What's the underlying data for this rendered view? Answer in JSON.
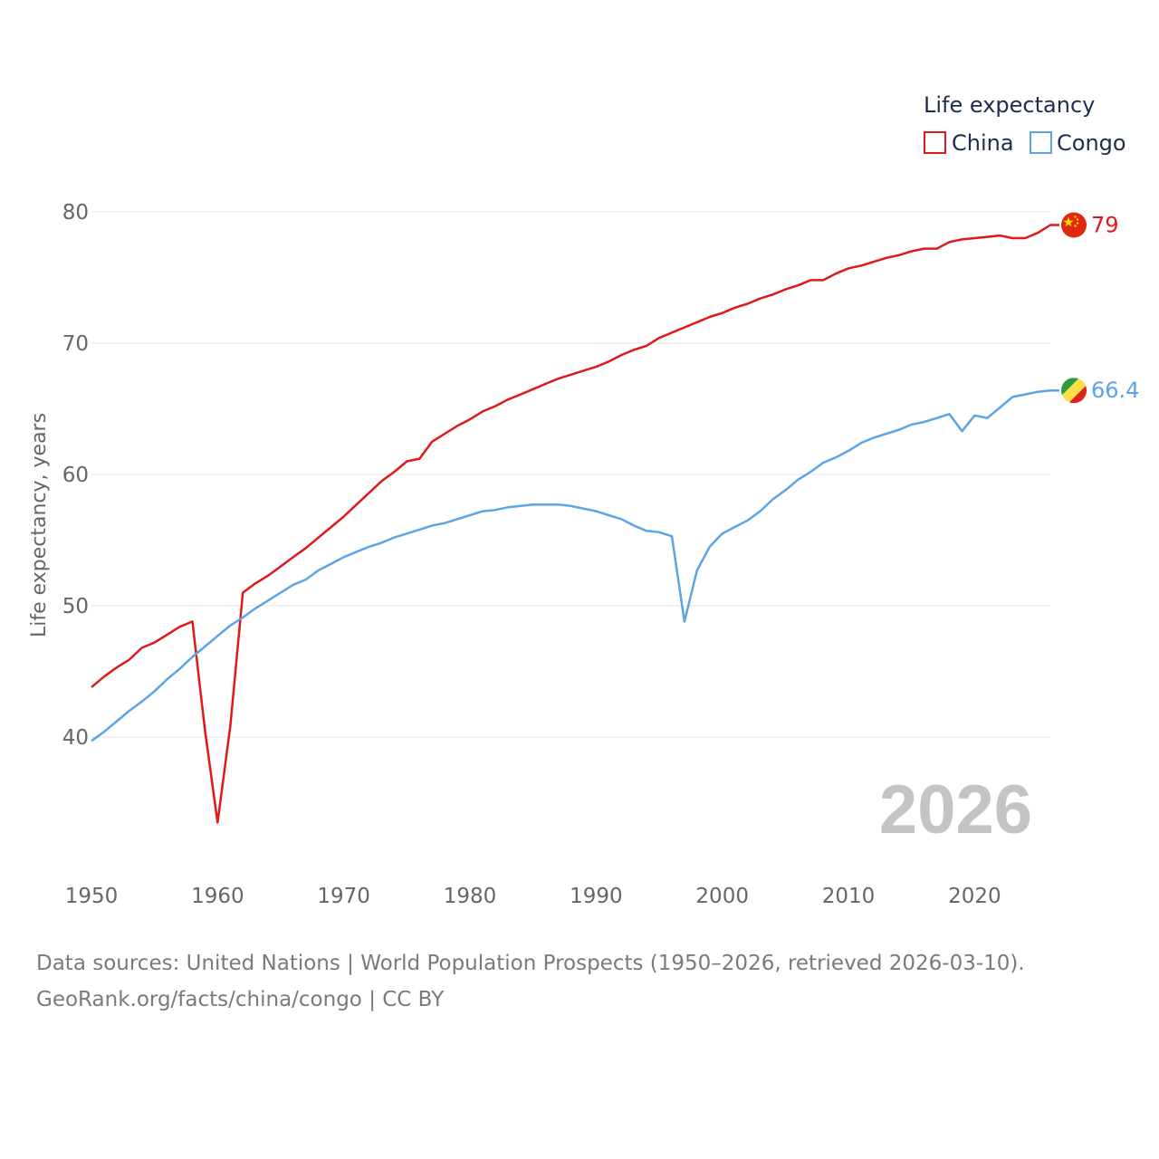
{
  "chart_data": {
    "type": "line",
    "title": "",
    "ylabel": "Life expectancy, years",
    "xlabel": "",
    "xlim": [
      1950,
      2026
    ],
    "ylim": [
      30,
      82
    ],
    "x_ticks": [
      "1950",
      "1960",
      "1970",
      "1980",
      "1990",
      "2000",
      "2010",
      "2020"
    ],
    "y_ticks": [
      "40",
      "50",
      "60",
      "70",
      "80"
    ],
    "legend": {
      "title": "Life expectancy",
      "placement": "top-right",
      "entries": [
        {
          "name": "China",
          "color": "#e01818"
        },
        {
          "name": "Congo",
          "color": "#5ba4e6"
        }
      ]
    },
    "current_year": "2026",
    "x": [
      1950,
      1951,
      1952,
      1953,
      1954,
      1955,
      1956,
      1957,
      1958,
      1959,
      1960,
      1961,
      1962,
      1963,
      1964,
      1965,
      1966,
      1967,
      1968,
      1969,
      1970,
      1971,
      1972,
      1973,
      1974,
      1975,
      1976,
      1977,
      1978,
      1979,
      1980,
      1981,
      1982,
      1983,
      1984,
      1985,
      1986,
      1987,
      1988,
      1989,
      1990,
      1991,
      1992,
      1993,
      1994,
      1995,
      1996,
      1997,
      1998,
      1999,
      2000,
      2001,
      2002,
      2003,
      2004,
      2005,
      2006,
      2007,
      2008,
      2009,
      2010,
      2011,
      2012,
      2013,
      2014,
      2015,
      2016,
      2017,
      2018,
      2019,
      2020,
      2021,
      2022,
      2023,
      2024,
      2025,
      2026
    ],
    "series": [
      {
        "name": "China",
        "color": "#e01818",
        "end_label": "79",
        "icon": "china-flag-icon",
        "values": [
          43.8,
          44.6,
          45.3,
          45.9,
          46.8,
          47.2,
          47.8,
          48.4,
          48.8,
          40.5,
          33.5,
          40.8,
          51.0,
          51.7,
          52.3,
          53.0,
          53.7,
          54.4,
          55.2,
          56.0,
          56.8,
          57.7,
          58.6,
          59.5,
          60.2,
          61.0,
          61.2,
          62.5,
          63.1,
          63.7,
          64.2,
          64.8,
          65.2,
          65.7,
          66.1,
          66.5,
          66.9,
          67.3,
          67.6,
          67.9,
          68.2,
          68.6,
          69.1,
          69.5,
          69.8,
          70.4,
          70.8,
          71.2,
          71.6,
          72.0,
          72.3,
          72.7,
          73.0,
          73.4,
          73.7,
          74.1,
          74.4,
          74.8,
          74.8,
          75.3,
          75.7,
          75.9,
          76.2,
          76.5,
          76.7,
          77.0,
          77.2,
          77.2,
          77.7,
          77.9,
          78.0,
          78.1,
          78.2,
          78.0,
          78.0,
          78.4,
          79.0
        ]
      },
      {
        "name": "Congo",
        "color": "#5ba4e6",
        "end_label": "66.4",
        "icon": "congo-flag-icon",
        "values": [
          39.7,
          40.4,
          41.2,
          42.0,
          42.7,
          43.5,
          44.4,
          45.2,
          46.1,
          46.9,
          47.7,
          48.5,
          49.1,
          49.8,
          50.4,
          51.0,
          51.6,
          52.0,
          52.7,
          53.2,
          53.7,
          54.1,
          54.5,
          54.8,
          55.2,
          55.5,
          55.8,
          56.1,
          56.3,
          56.6,
          56.9,
          57.2,
          57.3,
          57.5,
          57.6,
          57.7,
          57.7,
          57.7,
          57.6,
          57.4,
          57.2,
          56.9,
          56.6,
          56.1,
          55.7,
          55.6,
          55.3,
          48.8,
          52.7,
          54.5,
          55.5,
          56.0,
          56.5,
          57.2,
          58.1,
          58.8,
          59.6,
          60.2,
          60.9,
          61.3,
          61.8,
          62.4,
          62.8,
          63.1,
          63.4,
          63.8,
          64.0,
          64.3,
          64.6,
          63.3,
          64.5,
          64.3,
          65.1,
          65.9,
          66.1,
          66.3,
          66.4
        ]
      }
    ]
  },
  "footer": {
    "source_line": "Data sources: United Nations | World Population Prospects (1950–2026, retrieved 2026-03-10).",
    "site_line": "GeoRank.org/facts/china/congo | CC BY"
  }
}
